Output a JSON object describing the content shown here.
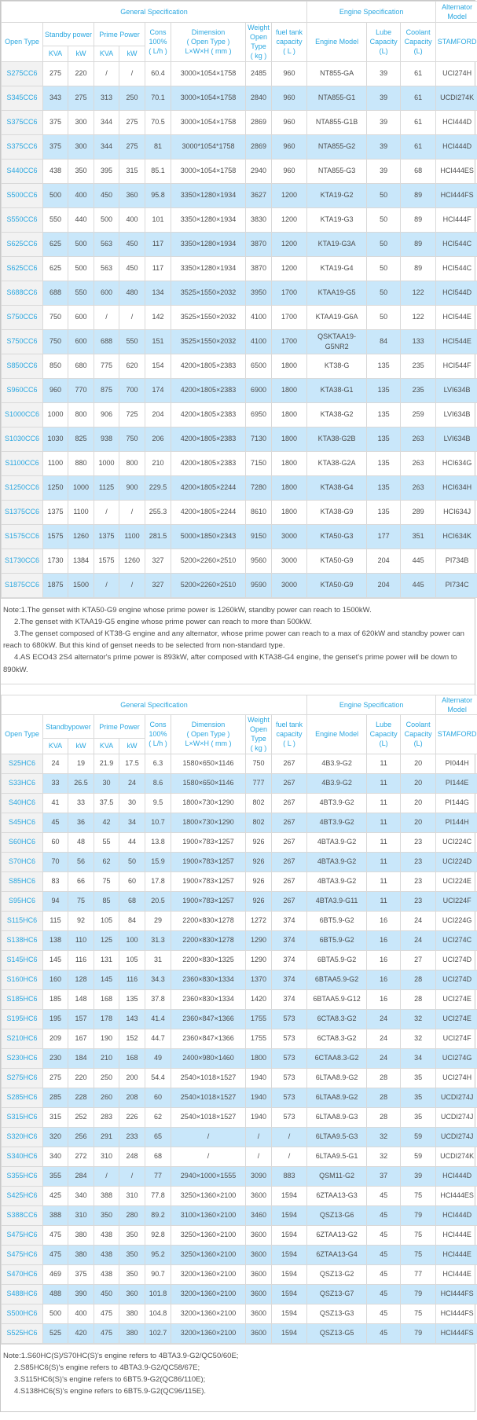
{
  "colors": {
    "accent_cyan": "#2AA7E0",
    "row_alt_blue": "#C9E7FA",
    "model_col_gray": "#F2F2F2",
    "border_gray": "#D9D9D9",
    "data_text": "#4D4D4D"
  },
  "table1": {
    "header": {
      "general": "General Specification",
      "engine_spec": "Engine Specification",
      "alternator_model": "Alternator Model",
      "open_type": "Open Type",
      "standby": "Standby power",
      "prime": "Prime Power",
      "kva": "KVA",
      "kw": "kW",
      "cons": "Cons\n100%\n( L/h )",
      "dimension": "Dimension\n( Open Type )\nL×W×H ( mm )",
      "weight": "Weight\nOpen Type\n( kg )",
      "fuel": "fuel tank\ncapacity\n( L )",
      "engine_model": "Engine Model",
      "lube": "Lube\nCapacity\n(L)",
      "coolant": "Coolant\nCapacity\n(L)",
      "stamford": "STAMFORD"
    },
    "rows": [
      [
        "S275CC6",
        "275",
        "220",
        "/",
        "/",
        "60.4",
        "3000×1054×1758",
        "2485",
        "960",
        "NT855-GA",
        "39",
        "61",
        "UCI274H"
      ],
      [
        "S345CC6",
        "343",
        "275",
        "313",
        "250",
        "70.1",
        "3000×1054×1758",
        "2840",
        "960",
        "NTA855-G1",
        "39",
        "61",
        "UCDI274K"
      ],
      [
        "S375CC6",
        "375",
        "300",
        "344",
        "275",
        "70.5",
        "3000×1054×1758",
        "2869",
        "960",
        "NTA855-G1B",
        "39",
        "61",
        "HCI444D"
      ],
      [
        "S375CC6",
        "375",
        "300",
        "344",
        "275",
        "81",
        "3000*1054*1758",
        "2869",
        "960",
        "NTA855-G2",
        "39",
        "61",
        "HCI444D"
      ],
      [
        "S440CC6",
        "438",
        "350",
        "395",
        "315",
        "85.1",
        "3000×1054×1758",
        "2940",
        "960",
        "NTA855-G3",
        "39",
        "68",
        "HCI444ES"
      ],
      [
        "S500CC6",
        "500",
        "400",
        "450",
        "360",
        "95.8",
        "3350×1280×1934",
        "3627",
        "1200",
        "KTA19-G2",
        "50",
        "89",
        "HCI444FS"
      ],
      [
        "S550CC6",
        "550",
        "440",
        "500",
        "400",
        "101",
        "3350×1280×1934",
        "3830",
        "1200",
        "KTA19-G3",
        "50",
        "89",
        "HCI444F"
      ],
      [
        "S625CC6",
        "625",
        "500",
        "563",
        "450",
        "117",
        "3350×1280×1934",
        "3870",
        "1200",
        "KTA19-G3A",
        "50",
        "89",
        "HCI544C"
      ],
      [
        "S625CC6",
        "625",
        "500",
        "563",
        "450",
        "117",
        "3350×1280×1934",
        "3870",
        "1200",
        "KTA19-G4",
        "50",
        "89",
        "HCI544C"
      ],
      [
        "S688CC6",
        "688",
        "550",
        "600",
        "480",
        "134",
        "3525×1550×2032",
        "3950",
        "1700",
        "KTAA19-G5",
        "50",
        "122",
        "HCI544D"
      ],
      [
        "S750CC6",
        "750",
        "600",
        "/",
        "/",
        "142",
        "3525×1550×2032",
        "4100",
        "1700",
        "KTAA19-G6A",
        "50",
        "122",
        "HCI544E"
      ],
      [
        "S750CC6",
        "750",
        "600",
        "688",
        "550",
        "151",
        "3525×1550×2032",
        "4100",
        "1700",
        "QSKTAA19-G5NR2",
        "84",
        "133",
        "HCI544E"
      ],
      [
        "S850CC6",
        "850",
        "680",
        "775",
        "620",
        "154",
        "4200×1805×2383",
        "6500",
        "1800",
        "KT38-G",
        "135",
        "235",
        "HCI544F"
      ],
      [
        "S960CC6",
        "960",
        "770",
        "875",
        "700",
        "174",
        "4200×1805×2383",
        "6900",
        "1800",
        "KTA38-G1",
        "135",
        "235",
        "LVI634B"
      ],
      [
        "S1000CC6",
        "1000",
        "800",
        "906",
        "725",
        "204",
        "4200×1805×2383",
        "6950",
        "1800",
        "KTA38-G2",
        "135",
        "259",
        "LVI634B"
      ],
      [
        "S1030CC6",
        "1030",
        "825",
        "938",
        "750",
        "206",
        "4200×1805×2383",
        "7130",
        "1800",
        "KTA38-G2B",
        "135",
        "263",
        "LVI634B"
      ],
      [
        "S1100CC6",
        "1100",
        "880",
        "1000",
        "800",
        "210",
        "4200×1805×2383",
        "7150",
        "1800",
        "KTA38-G2A",
        "135",
        "263",
        "HCI634G"
      ],
      [
        "S1250CC6",
        "1250",
        "1000",
        "1125",
        "900",
        "229.5",
        "4200×1805×2244",
        "7280",
        "1800",
        "KTA38-G4",
        "135",
        "263",
        "HCI634H"
      ],
      [
        "S1375CC6",
        "1375",
        "1100",
        "/",
        "/",
        "255.3",
        "4200×1805×2244",
        "8610",
        "1800",
        "KTA38-G9",
        "135",
        "289",
        "HCI634J"
      ],
      [
        "S1575CC6",
        "1575",
        "1260",
        "1375",
        "1100",
        "281.5",
        "5000×1850×2343",
        "9150",
        "3000",
        "KTA50-G3",
        "177",
        "351",
        "HCI634K"
      ],
      [
        "S1730CC6",
        "1730",
        "1384",
        "1575",
        "1260",
        "327",
        "5200×2260×2510",
        "9560",
        "3000",
        "KTA50-G9",
        "204",
        "445",
        "PI734B"
      ],
      [
        "S1875CC6",
        "1875",
        "1500",
        "/",
        "/",
        "327",
        "5200×2260×2510",
        "9590",
        "3000",
        "KTA50-G9",
        "204",
        "445",
        "PI734C"
      ]
    ]
  },
  "note1": {
    "line1": "Note:1.The genset with KTA50-G9 engine whose prime power is 1260kW, standby power can reach to 1500kW.",
    "line2": "2.The genset with KTAA19-G5 engine whose prime power can reach to more than 500kW.",
    "line3": "3.The genset composed of KT38-G engine and any alternator, whose prime power can reach to a max of 620kW and standby power can reach to 680kW. But this kind of genset needs to be selected from non-standard type.",
    "line4": "4.AS ECO43 2S4 alternator's prime power is 893kW, after composed with KTA38-G4 engine, the genset's prime power will be down to 890kW."
  },
  "table2": {
    "header": {
      "general": "General Specification",
      "engine_spec": "Engine Specification",
      "alternator_model": "Alternator Model",
      "open_type": "Open Type",
      "standby": "Standbypower",
      "prime": "Prime Power",
      "kva": "KVA",
      "kw": "kW",
      "cons": "Cons\n100%\n( L/h )",
      "dimension": "Dimension\n( Open Type )\nL×W×H ( mm )",
      "weight": "Weight\nOpen Type\n( kg )",
      "fuel": "fuel tank\ncapacity\n( L )",
      "engine_model": "Engine Model",
      "lube": "Lube\nCapacity\n(L)",
      "coolant": "Coolant\nCapacity\n(L)",
      "stamford": "STAMFORD"
    },
    "rows": [
      [
        "S25HC6",
        "24",
        "19",
        "21.9",
        "17.5",
        "6.3",
        "1580×650×1146",
        "750",
        "267",
        "4B3.9-G2",
        "11",
        "20",
        "PI044H"
      ],
      [
        "S33HC6",
        "33",
        "26.5",
        "30",
        "24",
        "8.6",
        "1580×650×1146",
        "777",
        "267",
        "4B3.9-G2",
        "11",
        "20",
        "PI144E"
      ],
      [
        "S40HC6",
        "41",
        "33",
        "37.5",
        "30",
        "9.5",
        "1800×730×1290",
        "802",
        "267",
        "4BT3.9-G2",
        "11",
        "20",
        "PI144G"
      ],
      [
        "S45HC6",
        "45",
        "36",
        "42",
        "34",
        "10.7",
        "1800×730×1290",
        "802",
        "267",
        "4BT3.9-G2",
        "11",
        "20",
        "PI144H"
      ],
      [
        "S60HC6",
        "60",
        "48",
        "55",
        "44",
        "13.8",
        "1900×783×1257",
        "926",
        "267",
        "4BTA3.9-G2",
        "11",
        "23",
        "UCI224C"
      ],
      [
        "S70HC6",
        "70",
        "56",
        "62",
        "50",
        "15.9",
        "1900×783×1257",
        "926",
        "267",
        "4BTA3.9-G2",
        "11",
        "23",
        "UCI224D"
      ],
      [
        "S85HC6",
        "83",
        "66",
        "75",
        "60",
        "17.8",
        "1900×783×1257",
        "926",
        "267",
        "4BTA3.9-G2",
        "11",
        "23",
        "UCI224E"
      ],
      [
        "S95HC6",
        "94",
        "75",
        "85",
        "68",
        "20.5",
        "1900×783×1257",
        "926",
        "267",
        "4BTA3.9-G11",
        "11",
        "23",
        "UCI224F"
      ],
      [
        "S115HC6",
        "115",
        "92",
        "105",
        "84",
        "29",
        "2200×830×1278",
        "1272",
        "374",
        "6BT5.9-G2",
        "16",
        "24",
        "UCI224G"
      ],
      [
        "S138HC6",
        "138",
        "110",
        "125",
        "100",
        "31.3",
        "2200×830×1278",
        "1290",
        "374",
        "6BT5.9-G2",
        "16",
        "24",
        "UCI274C"
      ],
      [
        "S145HC6",
        "145",
        "116",
        "131",
        "105",
        "31",
        "2200×830×1325",
        "1290",
        "374",
        "6BTA5.9-G2",
        "16",
        "27",
        "UCI274D"
      ],
      [
        "S160HC6",
        "160",
        "128",
        "145",
        "116",
        "34.3",
        "2360×830×1334",
        "1370",
        "374",
        "6BTAA5.9-G2",
        "16",
        "28",
        "UCI274D"
      ],
      [
        "S185HC6",
        "185",
        "148",
        "168",
        "135",
        "37.8",
        "2360×830×1334",
        "1420",
        "374",
        "6BTAA5.9-G12",
        "16",
        "28",
        "UCI274E"
      ],
      [
        "S195HC6",
        "195",
        "157",
        "178",
        "143",
        "41.4",
        "2360×847×1366",
        "1755",
        "573",
        "6CTA8.3-G2",
        "24",
        "32",
        "UCI274E"
      ],
      [
        "S210HC6",
        "209",
        "167",
        "190",
        "152",
        "44.7",
        "2360×847×1366",
        "1755",
        "573",
        "6CTA8.3-G2",
        "24",
        "32",
        "UCI274F"
      ],
      [
        "S230HC6",
        "230",
        "184",
        "210",
        "168",
        "49",
        "2400×980×1460",
        "1800",
        "573",
        "6CTAA8.3-G2",
        "24",
        "34",
        "UCI274G"
      ],
      [
        "S275HC6",
        "275",
        "220",
        "250",
        "200",
        "54.4",
        "2540×1018×1527",
        "1940",
        "573",
        "6LTAA8.9-G2",
        "28",
        "35",
        "UCI274H"
      ],
      [
        "S285HC6",
        "285",
        "228",
        "260",
        "208",
        "60",
        "2540×1018×1527",
        "1940",
        "573",
        "6LTAA8.9-G2",
        "28",
        "35",
        "UCDI274J"
      ],
      [
        "S315HC6",
        "315",
        "252",
        "283",
        "226",
        "62",
        "2540×1018×1527",
        "1940",
        "573",
        "6LTAA8.9-G3",
        "28",
        "35",
        "UCDI274J"
      ],
      [
        "S320HC6",
        "320",
        "256",
        "291",
        "233",
        "65",
        "/",
        "/",
        "/",
        "6LTAA9.5-G3",
        "32",
        "59",
        "UCDI274J"
      ],
      [
        "S340HC6",
        "340",
        "272",
        "310",
        "248",
        "68",
        "/",
        "/",
        "/",
        "6LTAA9.5-G1",
        "32",
        "59",
        "UCDI274K"
      ],
      [
        "S355HC6",
        "355",
        "284",
        "/",
        "/",
        "77",
        "2940×1000×1555",
        "3090",
        "883",
        "QSM11-G2",
        "37",
        "39",
        "HCI444D"
      ],
      [
        "S425HC6",
        "425",
        "340",
        "388",
        "310",
        "77.8",
        "3250×1360×2100",
        "3600",
        "1594",
        "6ZTAA13-G3",
        "45",
        "75",
        "HCI444ES"
      ],
      [
        "S388CC6",
        "388",
        "310",
        "350",
        "280",
        "89.2",
        "3100×1360×2100",
        "3460",
        "1594",
        "QSZ13-G6",
        "45",
        "79",
        "HCI444D"
      ],
      [
        "S475HC6",
        "475",
        "380",
        "438",
        "350",
        "92.8",
        "3250×1360×2100",
        "3600",
        "1594",
        "6ZTAA13-G2",
        "45",
        "75",
        "HCI444E"
      ],
      [
        "S475HC6",
        "475",
        "380",
        "438",
        "350",
        "95.2",
        "3250×1360×2100",
        "3600",
        "1594",
        "6ZTAA13-G4",
        "45",
        "75",
        "HCI444E"
      ],
      [
        "S470HC6",
        "469",
        "375",
        "438",
        "350",
        "90.7",
        "3200×1360×2100",
        "3600",
        "1594",
        "QSZ13-G2",
        "45",
        "77",
        "HCI444E"
      ],
      [
        "S488HC6",
        "488",
        "390",
        "450",
        "360",
        "101.8",
        "3200×1360×2100",
        "3600",
        "1594",
        "QSZ13-G7",
        "45",
        "79",
        "HCI444FS"
      ],
      [
        "S500HC6",
        "500",
        "400",
        "475",
        "380",
        "104.8",
        "3200×1360×2100",
        "3600",
        "1594",
        "QSZ13-G3",
        "45",
        "75",
        "HCI444FS"
      ],
      [
        "S525HC6",
        "525",
        "420",
        "475",
        "380",
        "102.7",
        "3200×1360×2100",
        "3600",
        "1594",
        "QSZ13-G5",
        "45",
        "79",
        "HCI444FS"
      ]
    ]
  },
  "note2": {
    "line1": "Note:1.S60HC(S)/S70HC(S)'s engine refers to 4BTA3.9-G2/QC50/60E;",
    "line2": "2.S85HC6(S)'s engine refers to 4BTA3.9-G2/QC58/67E;",
    "line3": "3.S115HC6(S)'s engine refers to 6BT5.9-G2(QC86/110E);",
    "line4": "4.S138HC6(S)'s engine refers to 6BT5.9-G2(QC96/115E)."
  }
}
